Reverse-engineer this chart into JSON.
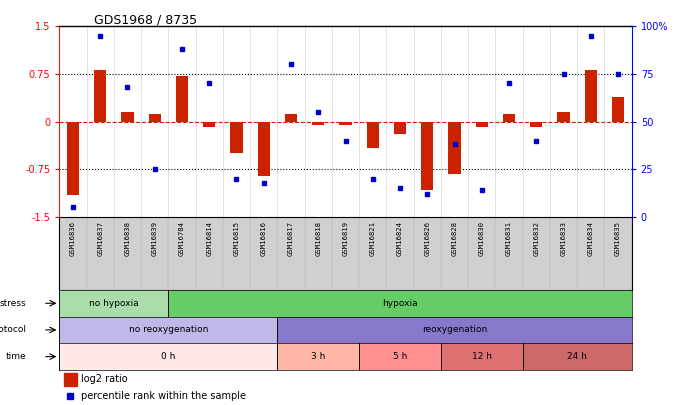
{
  "title": "GDS1968 / 8735",
  "samples": [
    "GSM16836",
    "GSM16837",
    "GSM16838",
    "GSM16839",
    "GSM16784",
    "GSM16814",
    "GSM16815",
    "GSM16816",
    "GSM16817",
    "GSM16818",
    "GSM16819",
    "GSM16821",
    "GSM16824",
    "GSM16826",
    "GSM16828",
    "GSM16830",
    "GSM16831",
    "GSM16832",
    "GSM16833",
    "GSM16834",
    "GSM16835"
  ],
  "log2ratio": [
    -1.15,
    0.82,
    0.15,
    0.12,
    0.72,
    -0.08,
    -0.5,
    -0.85,
    0.12,
    -0.05,
    -0.05,
    -0.42,
    -0.2,
    -1.08,
    -0.82,
    -0.08,
    0.12,
    -0.08,
    0.15,
    0.82,
    0.38
  ],
  "percentile": [
    5,
    95,
    68,
    25,
    88,
    70,
    20,
    18,
    80,
    55,
    40,
    20,
    15,
    12,
    38,
    14,
    70,
    40,
    75,
    95,
    75
  ],
  "bar_color": "#cc2200",
  "dot_color": "#0000cc",
  "stress_regions": [
    [
      0,
      4,
      "#aaddaa",
      "no hypoxia"
    ],
    [
      4,
      21,
      "#66cc66",
      "hypoxia"
    ]
  ],
  "protocol_regions": [
    [
      0,
      8,
      "#c0b8e8",
      "no reoxygenation"
    ],
    [
      8,
      21,
      "#8878cc",
      "reoxygenation"
    ]
  ],
  "time_regions": [
    [
      0,
      8,
      "#ffe8e8",
      "0 h"
    ],
    [
      8,
      11,
      "#ffb8a8",
      "3 h"
    ],
    [
      11,
      14,
      "#ff9090",
      "5 h"
    ],
    [
      14,
      17,
      "#dd7070",
      "12 h"
    ],
    [
      17,
      21,
      "#cc6868",
      "24 h"
    ]
  ],
  "label_bg": "#d0d0d0"
}
